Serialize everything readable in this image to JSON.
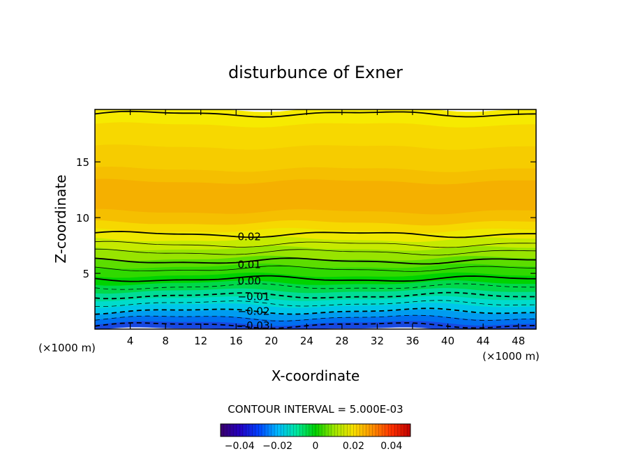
{
  "chart_data": {
    "type": "heatmap",
    "title": "disturbunce of Exner",
    "xlabel": "X-coordinate",
    "ylabel": "Z-coordinate",
    "x_unit_left": "(×1000 m)",
    "x_unit_right": "(×1000 m)",
    "xlim": [
      0,
      50
    ],
    "ylim": [
      0,
      19.7
    ],
    "x_ticks": [
      4,
      8,
      12,
      16,
      20,
      24,
      28,
      32,
      36,
      40,
      44,
      48
    ],
    "y_ticks": [
      5,
      10,
      15
    ],
    "contour_interval_text": "CONTOUR INTERVAL = 5.000E-03",
    "contour_labels": [
      {
        "text": "0.02",
        "x": 17.5,
        "z": 8.3
      },
      {
        "text": "0.01",
        "x": 17.5,
        "z": 5.8
      },
      {
        "text": "0.00",
        "x": 17.5,
        "z": 4.3
      },
      {
        "text": "−0.01",
        "x": 18.0,
        "z": 2.9
      },
      {
        "text": "−0.02",
        "x": 18.0,
        "z": 1.6
      },
      {
        "text": "−0.03",
        "x": 18.0,
        "z": 0.3
      }
    ],
    "color_bands": [
      {
        "z": [
          18.3,
          19.7
        ],
        "color": "#f6ea00"
      },
      {
        "z": [
          16.3,
          18.3
        ],
        "color": "#f7d800"
      },
      {
        "z": [
          14.3,
          16.3
        ],
        "color": "#f6cc00"
      },
      {
        "z": [
          13.2,
          14.3
        ],
        "color": "#f5bf00"
      },
      {
        "z": [
          10.5,
          13.2
        ],
        "color": "#f5b000"
      },
      {
        "z": [
          9.5,
          10.5
        ],
        "color": "#f5bf00"
      },
      {
        "z": [
          8.8,
          9.5
        ],
        "color": "#f6d800"
      },
      {
        "z": [
          8.0,
          8.8
        ],
        "color": "#eee800"
      },
      {
        "z": [
          7.2,
          8.0
        ],
        "color": "#c6ea00"
      },
      {
        "z": [
          6.3,
          7.2
        ],
        "color": "#98e400"
      },
      {
        "z": [
          5.6,
          6.3
        ],
        "color": "#5cdd00"
      },
      {
        "z": [
          4.8,
          5.6
        ],
        "color": "#30d900"
      },
      {
        "z": [
          4.1,
          4.8
        ],
        "color": "#00d200"
      },
      {
        "z": [
          3.4,
          4.1
        ],
        "color": "#00d84a"
      },
      {
        "z": [
          2.7,
          3.4
        ],
        "color": "#00dc96"
      },
      {
        "z": [
          2.1,
          2.7
        ],
        "color": "#00dccc"
      },
      {
        "z": [
          1.5,
          2.1
        ],
        "color": "#00c6ea"
      },
      {
        "z": [
          1.0,
          1.5
        ],
        "color": "#009cf0"
      },
      {
        "z": [
          0.5,
          1.0
        ],
        "color": "#0070f0"
      },
      {
        "z": [
          0.0,
          0.5
        ],
        "color": "#1848e0"
      }
    ],
    "contours": [
      {
        "z": 19.3,
        "style": "solid",
        "weight": "thick"
      },
      {
        "z": 8.5,
        "style": "solid",
        "weight": "thick"
      },
      {
        "z": 7.6,
        "style": "solid",
        "weight": "thin"
      },
      {
        "z": 6.9,
        "style": "solid",
        "weight": "thin"
      },
      {
        "z": 6.1,
        "style": "solid",
        "weight": "thick"
      },
      {
        "z": 5.4,
        "style": "solid",
        "weight": "thin"
      },
      {
        "z": 4.5,
        "style": "solid",
        "weight": "thick"
      },
      {
        "z": 3.8,
        "style": "dashed",
        "weight": "thin"
      },
      {
        "z": 3.0,
        "style": "dashed",
        "weight": "thick"
      },
      {
        "z": 2.3,
        "style": "dashed",
        "weight": "thin"
      },
      {
        "z": 1.6,
        "style": "dashed",
        "weight": "thick"
      },
      {
        "z": 1.0,
        "style": "dashed",
        "weight": "thin"
      },
      {
        "z": 0.35,
        "style": "dashed",
        "weight": "thick"
      }
    ],
    "colorbar": {
      "range": [
        -0.05,
        0.05
      ],
      "tick_labels": [
        {
          "text": "−0.04",
          "value": -0.04
        },
        {
          "text": "−0.02",
          "value": -0.02
        },
        {
          "text": "0",
          "value": 0.0
        },
        {
          "text": "0.02",
          "value": 0.02
        },
        {
          "text": "0.04",
          "value": 0.04
        }
      ],
      "stops": [
        "#3a006a",
        "#2400c0",
        "#0040ff",
        "#00b8ff",
        "#00e8a0",
        "#00d000",
        "#a0e800",
        "#f8e000",
        "#ff9000",
        "#ff3000",
        "#c00000"
      ]
    }
  }
}
